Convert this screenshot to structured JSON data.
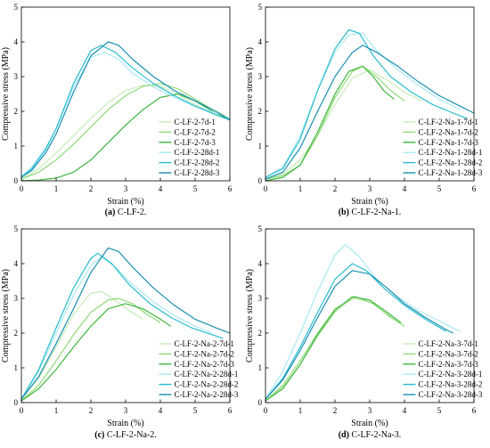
{
  "colors": {
    "axis": "#000000",
    "c7d1": "#c6ecb8",
    "c7d2": "#8fda77",
    "c7d3": "#3fb63f",
    "c28d1": "#a9e8f2",
    "c28d2": "#28bccf",
    "c28d3": "#1a8fb0"
  },
  "chart_data": [
    {
      "type": "line",
      "caption_letter": "(a)",
      "caption_text": " C-LF-2.",
      "xlabel": "Strain (%)",
      "ylabel": "Compressive stress (MPa)",
      "xlim": [
        0,
        6
      ],
      "ylim": [
        0,
        5
      ],
      "xticks": [
        "0",
        "1",
        "2",
        "3",
        "4",
        "5",
        "6"
      ],
      "yticks": [
        "0",
        "1",
        "2",
        "3",
        "4",
        "5"
      ],
      "legend_position": "bottom-right",
      "series": [
        {
          "name": "C-LF-2-7d-1",
          "color_key": "c7d1",
          "x": [
            0,
            0.5,
            1,
            1.5,
            2,
            2.5,
            3,
            3.5,
            4,
            4.5,
            5,
            5.5,
            6
          ],
          "y": [
            0.05,
            0.35,
            0.8,
            1.3,
            1.8,
            2.25,
            2.6,
            2.75,
            2.72,
            2.5,
            2.2,
            1.95,
            1.8
          ]
        },
        {
          "name": "C-LF-2-7d-2",
          "color_key": "c7d2",
          "x": [
            0,
            0.5,
            1,
            1.5,
            2,
            2.5,
            3,
            3.5,
            4,
            4.5,
            5,
            5.5,
            6
          ],
          "y": [
            0.05,
            0.25,
            0.6,
            1.05,
            1.55,
            2.05,
            2.45,
            2.72,
            2.8,
            2.65,
            2.35,
            2.05,
            1.8
          ]
        },
        {
          "name": "C-LF-2-7d-3",
          "color_key": "c7d3",
          "x": [
            0,
            0.5,
            1,
            1.5,
            2,
            2.5,
            3,
            3.5,
            4,
            4.5,
            5,
            5.5,
            6
          ],
          "y": [
            0,
            0.02,
            0.08,
            0.25,
            0.6,
            1.1,
            1.6,
            2.05,
            2.4,
            2.5,
            2.3,
            2.0,
            1.75
          ]
        },
        {
          "name": "C-LF-2-28d-1",
          "color_key": "c28d1",
          "x": [
            0,
            0.3,
            0.7,
            1,
            1.5,
            2,
            2.4,
            2.8,
            3.2,
            3.8,
            4.4,
            5,
            5.6,
            6
          ],
          "y": [
            0.15,
            0.4,
            0.95,
            1.5,
            2.7,
            3.55,
            3.7,
            3.5,
            3.1,
            2.7,
            2.4,
            2.15,
            1.95,
            1.8
          ]
        },
        {
          "name": "C-LF-2-28d-2",
          "color_key": "c28d2",
          "x": [
            0,
            0.3,
            0.7,
            1,
            1.5,
            2,
            2.3,
            2.7,
            3.2,
            3.8,
            4.4,
            5,
            5.6,
            6
          ],
          "y": [
            0.1,
            0.35,
            0.9,
            1.5,
            2.8,
            3.75,
            3.9,
            3.7,
            3.25,
            2.8,
            2.45,
            2.15,
            1.9,
            1.75
          ]
        },
        {
          "name": "C-LF-2-28d-3",
          "color_key": "c28d3",
          "x": [
            0,
            0.3,
            0.7,
            1,
            1.5,
            2,
            2.5,
            2.8,
            3.2,
            3.8,
            4.4,
            5,
            5.6,
            6
          ],
          "y": [
            0.1,
            0.3,
            0.8,
            1.35,
            2.55,
            3.6,
            4.0,
            3.9,
            3.5,
            3.0,
            2.6,
            2.3,
            2.0,
            1.75
          ]
        }
      ]
    },
    {
      "type": "line",
      "caption_letter": "(b)",
      "caption_text": " C-LF-2-Na-1.",
      "xlabel": "Strain (%)",
      "ylabel": "Compressive stress (MPa)",
      "xlim": [
        0,
        6
      ],
      "ylim": [
        0,
        5
      ],
      "xticks": [
        "0",
        "1",
        "2",
        "3",
        "4",
        "5",
        "6"
      ],
      "yticks": [
        "0",
        "1",
        "2",
        "3",
        "4",
        "5"
      ],
      "legend_position": "bottom-right",
      "series": [
        {
          "name": "C-LF-2-Na-1-7d-1",
          "color_key": "c7d1",
          "x": [
            0,
            0.5,
            1,
            1.5,
            2,
            2.5,
            3,
            3.5,
            4,
            4.5
          ],
          "y": [
            0.05,
            0.2,
            0.6,
            1.3,
            2.2,
            2.95,
            3.2,
            2.9,
            2.55,
            2.3
          ]
        },
        {
          "name": "C-LF-2-Na-1-7d-2",
          "color_key": "c7d2",
          "x": [
            0,
            0.5,
            1,
            1.5,
            2,
            2.5,
            2.8,
            3.2,
            3.6,
            4.0
          ],
          "y": [
            0.05,
            0.15,
            0.45,
            1.3,
            2.4,
            3.15,
            3.3,
            3.0,
            2.6,
            2.3
          ]
        },
        {
          "name": "C-LF-2-Na-1-7d-3",
          "color_key": "c7d3",
          "x": [
            0,
            0.5,
            1,
            1.5,
            2,
            2.4,
            2.8,
            3.1,
            3.4,
            3.7
          ],
          "y": [
            0,
            0.1,
            0.45,
            1.4,
            2.5,
            3.15,
            3.3,
            3.0,
            2.6,
            2.35
          ]
        },
        {
          "name": "C-LF-2-Na-1-28d-1",
          "color_key": "c28d1",
          "x": [
            0,
            0.5,
            1,
            1.5,
            2,
            2.4,
            2.8,
            3.2,
            3.8,
            4.4,
            5,
            5.6
          ],
          "y": [
            0.1,
            0.4,
            1.3,
            2.6,
            3.7,
            4.2,
            4.25,
            3.75,
            3.2,
            2.75,
            2.35,
            2.05
          ]
        },
        {
          "name": "C-LF-2-Na-1-28d-2",
          "color_key": "c28d2",
          "x": [
            0,
            0.5,
            1,
            1.5,
            2,
            2.4,
            2.7,
            3.1,
            3.6,
            4.2,
            4.8,
            5.4,
            5.8
          ],
          "y": [
            0.1,
            0.35,
            1.2,
            2.6,
            3.8,
            4.35,
            4.25,
            3.6,
            3.0,
            2.55,
            2.2,
            1.95,
            1.8
          ]
        },
        {
          "name": "C-LF-2-Na-1-28d-3",
          "color_key": "c28d3",
          "x": [
            0,
            0.5,
            1,
            1.5,
            2,
            2.5,
            2.8,
            3.2,
            3.8,
            4.4,
            5,
            5.6,
            6
          ],
          "y": [
            0.05,
            0.25,
            0.95,
            2.0,
            3.0,
            3.7,
            3.9,
            3.7,
            3.3,
            2.85,
            2.45,
            2.15,
            1.95
          ]
        }
      ]
    },
    {
      "type": "line",
      "caption_letter": "(c)",
      "caption_text": " C-LF-2-Na-2.",
      "xlabel": "Strain (%)",
      "ylabel": "Compressive stress (MPa)",
      "xlim": [
        0,
        6
      ],
      "ylim": [
        0,
        5
      ],
      "xticks": [
        "0",
        "1",
        "2",
        "3",
        "4",
        "5",
        "6"
      ],
      "yticks": [
        "0",
        "1",
        "2",
        "3",
        "4",
        "5"
      ],
      "legend_position": "bottom-right",
      "series": [
        {
          "name": "C-LF-2-Na-2-7d-1",
          "color_key": "c7d1",
          "x": [
            0,
            0.5,
            1,
            1.5,
            2,
            2.3,
            2.7,
            3.1,
            3.5
          ],
          "y": [
            0.1,
            0.7,
            1.6,
            2.55,
            3.15,
            3.2,
            2.95,
            2.65,
            2.4
          ]
        },
        {
          "name": "C-LF-2-Na-2-7d-2",
          "color_key": "c7d2",
          "x": [
            0,
            0.5,
            1,
            1.5,
            2,
            2.5,
            2.8,
            3.2,
            3.6,
            4.0
          ],
          "y": [
            0.05,
            0.5,
            1.2,
            1.95,
            2.6,
            2.95,
            3.0,
            2.85,
            2.55,
            2.3
          ]
        },
        {
          "name": "C-LF-2-Na-2-7d-3",
          "color_key": "c7d3",
          "x": [
            0,
            0.5,
            1,
            1.5,
            2,
            2.5,
            3,
            3.5,
            4,
            4.3
          ],
          "y": [
            0.05,
            0.4,
            0.95,
            1.6,
            2.2,
            2.7,
            2.85,
            2.7,
            2.4,
            2.2
          ]
        },
        {
          "name": "C-LF-2-Na-2-28d-1",
          "color_key": "c28d1",
          "x": [
            0,
            0.5,
            1,
            1.5,
            2,
            2.3,
            2.7,
            3.2,
            3.8,
            4.4,
            5,
            5.5
          ],
          "y": [
            0.1,
            0.9,
            2.0,
            3.1,
            3.95,
            4.2,
            3.9,
            3.4,
            2.9,
            2.5,
            2.2,
            2.0
          ]
        },
        {
          "name": "C-LF-2-Na-2-28d-2",
          "color_key": "c28d2",
          "x": [
            0,
            0.5,
            1,
            1.5,
            2,
            2.2,
            2.6,
            3.1,
            3.7,
            4.3,
            4.9,
            5.5,
            5.8
          ],
          "y": [
            0.1,
            0.95,
            2.15,
            3.3,
            4.15,
            4.3,
            4.0,
            3.4,
            2.85,
            2.45,
            2.15,
            1.95,
            1.85
          ]
        },
        {
          "name": "C-LF-2-Na-2-28d-3",
          "color_key": "c28d3",
          "x": [
            0,
            0.5,
            1,
            1.5,
            2,
            2.5,
            2.8,
            3.2,
            3.8,
            4.4,
            5,
            5.6,
            6
          ],
          "y": [
            0.1,
            0.75,
            1.7,
            2.7,
            3.75,
            4.45,
            4.35,
            3.9,
            3.3,
            2.8,
            2.4,
            2.15,
            2.0
          ]
        }
      ]
    },
    {
      "type": "line",
      "caption_letter": "(d)",
      "caption_text": " C-LF-2-Na-3.",
      "xlabel": "Strain (%)",
      "ylabel": "Compressive stress (MPa)",
      "xlim": [
        0,
        6
      ],
      "ylim": [
        0,
        5
      ],
      "xticks": [
        "0",
        "1",
        "2",
        "3",
        "4",
        "5",
        "6"
      ],
      "yticks": [
        "0",
        "1",
        "2",
        "3",
        "4",
        "5"
      ],
      "legend_position": "bottom-right",
      "series": [
        {
          "name": "C-LF-2-Na-3-7d-1",
          "color_key": "c7d1",
          "x": [
            0,
            0.5,
            1,
            1.5,
            2,
            2.5,
            3,
            3.5,
            3.9
          ],
          "y": [
            0.05,
            0.45,
            1.1,
            1.9,
            2.6,
            3.0,
            2.9,
            2.55,
            2.3
          ]
        },
        {
          "name": "C-LF-2-Na-3-7d-2",
          "color_key": "c7d2",
          "x": [
            0,
            0.5,
            1,
            1.5,
            2,
            2.6,
            3.1,
            3.6,
            4.0
          ],
          "y": [
            0.05,
            0.5,
            1.2,
            2.0,
            2.7,
            3.05,
            2.85,
            2.45,
            2.2
          ]
        },
        {
          "name": "C-LF-2-Na-3-7d-3",
          "color_key": "c7d3",
          "x": [
            0,
            0.5,
            1,
            1.5,
            2,
            2.5,
            3,
            3.5,
            3.9
          ],
          "y": [
            0.05,
            0.4,
            1.1,
            1.95,
            2.65,
            3.05,
            2.95,
            2.6,
            2.3
          ]
        },
        {
          "name": "C-LF-2-Na-3-28d-1",
          "color_key": "c28d1",
          "x": [
            0,
            0.5,
            1,
            1.5,
            2,
            2.3,
            2.7,
            3.2,
            3.8,
            4.4,
            5,
            5.6
          ],
          "y": [
            0.1,
            0.9,
            2.0,
            3.2,
            4.25,
            4.55,
            4.2,
            3.55,
            3.05,
            2.65,
            2.35,
            2.05
          ]
        },
        {
          "name": "C-LF-2-Na-3-28d-2",
          "color_key": "c28d2",
          "x": [
            0,
            0.5,
            1,
            1.5,
            2,
            2.5,
            2.9,
            3.4,
            4.0,
            4.6,
            5.2
          ],
          "y": [
            0.1,
            0.7,
            1.6,
            2.6,
            3.55,
            4.0,
            3.8,
            3.3,
            2.8,
            2.4,
            2.05
          ]
        },
        {
          "name": "C-LF-2-Na-3-28d-3",
          "color_key": "c28d3",
          "x": [
            0,
            0.5,
            1,
            1.5,
            2,
            2.5,
            3,
            3.5,
            4,
            4.6,
            5.2,
            5.4
          ],
          "y": [
            0.1,
            0.65,
            1.5,
            2.45,
            3.35,
            3.8,
            3.7,
            3.3,
            2.85,
            2.45,
            2.1,
            2.0
          ]
        }
      ]
    }
  ]
}
